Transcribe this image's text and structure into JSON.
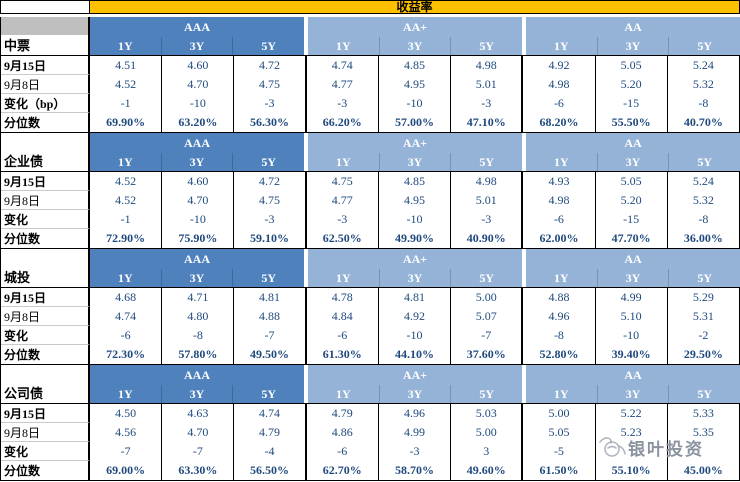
{
  "title": "收益率",
  "watermark": {
    "text": "银叶投资"
  },
  "colors": {
    "header_yellow": "#FFC000",
    "rating_aaa_blue": "#4F81BD",
    "rating_light_blue": "#95B3D7",
    "corner_gray": "#BFBFBF",
    "value_text": "#1F497D"
  },
  "chart_data": {
    "type": "table",
    "title": "收益率",
    "rating_groups": [
      "AAA",
      "AA+",
      "AA"
    ],
    "tenors": [
      "1Y",
      "3Y",
      "5Y"
    ],
    "blocks": [
      {
        "name": "中票",
        "rows": [
          {
            "label": "9月15日",
            "values": [
              "4.51",
              "4.60",
              "4.72",
              "4.74",
              "4.85",
              "4.98",
              "4.92",
              "5.05",
              "5.24"
            ]
          },
          {
            "label": "9月8日",
            "values": [
              "4.52",
              "4.70",
              "4.75",
              "4.77",
              "4.95",
              "5.01",
              "4.98",
              "5.20",
              "5.32"
            ]
          },
          {
            "label": "变化（bp）",
            "values": [
              "-1",
              "-10",
              "-3",
              "-3",
              "-10",
              "-3",
              "-6",
              "-15",
              "-8"
            ]
          },
          {
            "label": "分位数",
            "values": [
              "69.90%",
              "63.20%",
              "56.30%",
              "66.20%",
              "57.00%",
              "47.10%",
              "68.20%",
              "55.50%",
              "40.70%"
            ]
          }
        ]
      },
      {
        "name": "企业债",
        "rows": [
          {
            "label": "9月15日",
            "values": [
              "4.52",
              "4.60",
              "4.72",
              "4.75",
              "4.85",
              "4.98",
              "4.93",
              "5.05",
              "5.24"
            ]
          },
          {
            "label": "9月8日",
            "values": [
              "4.52",
              "4.70",
              "4.75",
              "4.77",
              "4.95",
              "5.01",
              "4.98",
              "5.20",
              "5.32"
            ]
          },
          {
            "label": "变化",
            "values": [
              "-1",
              "-10",
              "-3",
              "-3",
              "-10",
              "-3",
              "-6",
              "-15",
              "-8"
            ]
          },
          {
            "label": "分位数",
            "values": [
              "72.90%",
              "75.90%",
              "59.10%",
              "62.50%",
              "49.90%",
              "40.90%",
              "62.00%",
              "47.70%",
              "36.00%"
            ]
          }
        ]
      },
      {
        "name": "城投",
        "rows": [
          {
            "label": "9月15日",
            "values": [
              "4.68",
              "4.71",
              "4.81",
              "4.78",
              "4.81",
              "5.00",
              "4.88",
              "4.99",
              "5.29"
            ]
          },
          {
            "label": "9月8日",
            "values": [
              "4.74",
              "4.80",
              "4.88",
              "4.84",
              "4.92",
              "5.07",
              "4.96",
              "5.10",
              "5.31"
            ]
          },
          {
            "label": "变化",
            "values": [
              "-6",
              "-8",
              "-7",
              "-6",
              "-10",
              "-7",
              "-8",
              "-10",
              "-2"
            ]
          },
          {
            "label": "分位数",
            "values": [
              "72.30%",
              "57.80%",
              "49.50%",
              "61.30%",
              "44.10%",
              "37.60%",
              "52.80%",
              "39.40%",
              "29.50%"
            ]
          }
        ]
      },
      {
        "name": "公司债",
        "rows": [
          {
            "label": "9月15日",
            "values": [
              "4.50",
              "4.63",
              "4.74",
              "4.79",
              "4.96",
              "5.03",
              "5.00",
              "5.22",
              "5.33"
            ]
          },
          {
            "label": "9月8日",
            "values": [
              "4.56",
              "4.70",
              "4.79",
              "4.86",
              "4.99",
              "5.00",
              "5.05",
              "5.23",
              "5.35"
            ]
          },
          {
            "label": "变化",
            "values": [
              "-7",
              "-7",
              "-4",
              "-6",
              "-3",
              "3",
              "-5",
              "",
              ""
            ]
          },
          {
            "label": "分位数",
            "values": [
              "69.00%",
              "63.30%",
              "56.50%",
              "62.70%",
              "58.70%",
              "49.60%",
              "61.50%",
              "55.10%",
              "45.00%"
            ]
          }
        ]
      }
    ]
  }
}
